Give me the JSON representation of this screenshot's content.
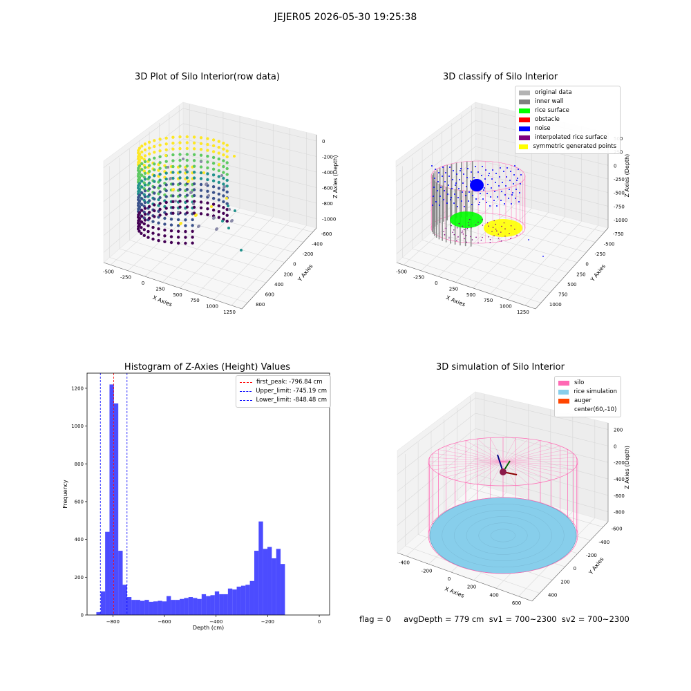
{
  "suptitle": "JEJER05 2026-05-30 19:25:38",
  "panels": {
    "raw": {
      "title": "3D Plot of Silo Interior(row data)",
      "xlabel": "X Axies",
      "ylabel": "Y Axies",
      "zlabel": "Z Axies (Depth)",
      "xticks": [
        "-500",
        "-250",
        "0",
        "250",
        "500",
        "750",
        "1000",
        "1250"
      ],
      "yticks": [
        "800",
        "600",
        "400",
        "200",
        "0",
        "-200",
        "-400",
        "-600"
      ],
      "zticks": [
        "0",
        "-200",
        "-400",
        "-600",
        "-800",
        "-1000"
      ]
    },
    "classify": {
      "title": "3D classify of Silo Interior",
      "xlabel": "X Axies",
      "ylabel": "Y Axies",
      "zlabel": "Z Axies (Depth)",
      "xticks": [
        "-500",
        "-250",
        "0",
        "250",
        "500",
        "750",
        "1000",
        "1250"
      ],
      "yticks": [
        "1000",
        "750",
        "500",
        "250",
        "0",
        "-250",
        "-500",
        "-750"
      ],
      "zticks": [
        "500",
        "250",
        "0",
        "-250",
        "-500",
        "-750",
        "-1000"
      ],
      "legend": [
        {
          "label": "original data",
          "color": "#b3b3b3"
        },
        {
          "label": "inner wall",
          "color": "#808080"
        },
        {
          "label": "rice surface",
          "color": "#00ff00"
        },
        {
          "label": "obstacle",
          "color": "#ff0000"
        },
        {
          "label": "noise",
          "color": "#0000ff"
        },
        {
          "label": "interpolated rice surface",
          "color": "#800080"
        },
        {
          "label": "symmetric generated points",
          "color": "#ffff00"
        }
      ]
    },
    "simulation": {
      "title": "3D simulation of Silo Interior",
      "xlabel": "X Axies",
      "ylabel": "Y Axies",
      "zlabel": "Z Axies (Depth)",
      "xticks": [
        "-400",
        "-200",
        "0",
        "200",
        "400",
        "600"
      ],
      "yticks": [
        "400",
        "200",
        "0",
        "-200",
        "-400",
        "-600"
      ],
      "zticks": [
        "200",
        "0",
        "-200",
        "-400",
        "-600",
        "-800"
      ],
      "legend": [
        {
          "label": "silo",
          "color": "#ff69b4"
        },
        {
          "label": "rice simulation",
          "color": "#87ceeb"
        },
        {
          "label": "auger",
          "color": "#ff4500"
        },
        {
          "label": "center(60,-10)",
          "color": "#ffffff"
        }
      ]
    }
  },
  "chart_data": {
    "type": "bar",
    "title": "Histogram of Z-Axies (Height) Values",
    "xlabel": "Depth (cm)",
    "ylabel": "Frequency",
    "xlim": [
      -900,
      40
    ],
    "ylim": [
      0,
      1280
    ],
    "xticks": [
      -800,
      -600,
      -400,
      -200,
      0
    ],
    "yticks": [
      0,
      200,
      400,
      600,
      800,
      1000,
      1200
    ],
    "bin_start": -864,
    "bin_width": 17,
    "values": [
      15,
      125,
      440,
      1220,
      1120,
      340,
      160,
      95,
      80,
      80,
      75,
      80,
      70,
      72,
      75,
      72,
      100,
      80,
      80,
      85,
      90,
      95,
      90,
      85,
      110,
      100,
      105,
      125,
      110,
      110,
      140,
      135,
      150,
      155,
      160,
      180,
      340,
      495,
      350,
      360,
      300,
      350,
      270
    ],
    "color": "#0000ff",
    "vlines": [
      {
        "label": "first_peak: -796.84 cm",
        "x": -796.84,
        "color": "#ff0000"
      },
      {
        "label": "Upper_limit: -745.19 cm",
        "x": -745.19,
        "color": "#0000ff"
      },
      {
        "label": "Lower_limit: -848.48 cm",
        "x": -848.48,
        "color": "#0000ff"
      }
    ],
    "legend_position": "upper right"
  },
  "stats_text": "flag = 0     avgDepth = 779 cm  sv1 = 700~2300  sv2 = 700~2300"
}
